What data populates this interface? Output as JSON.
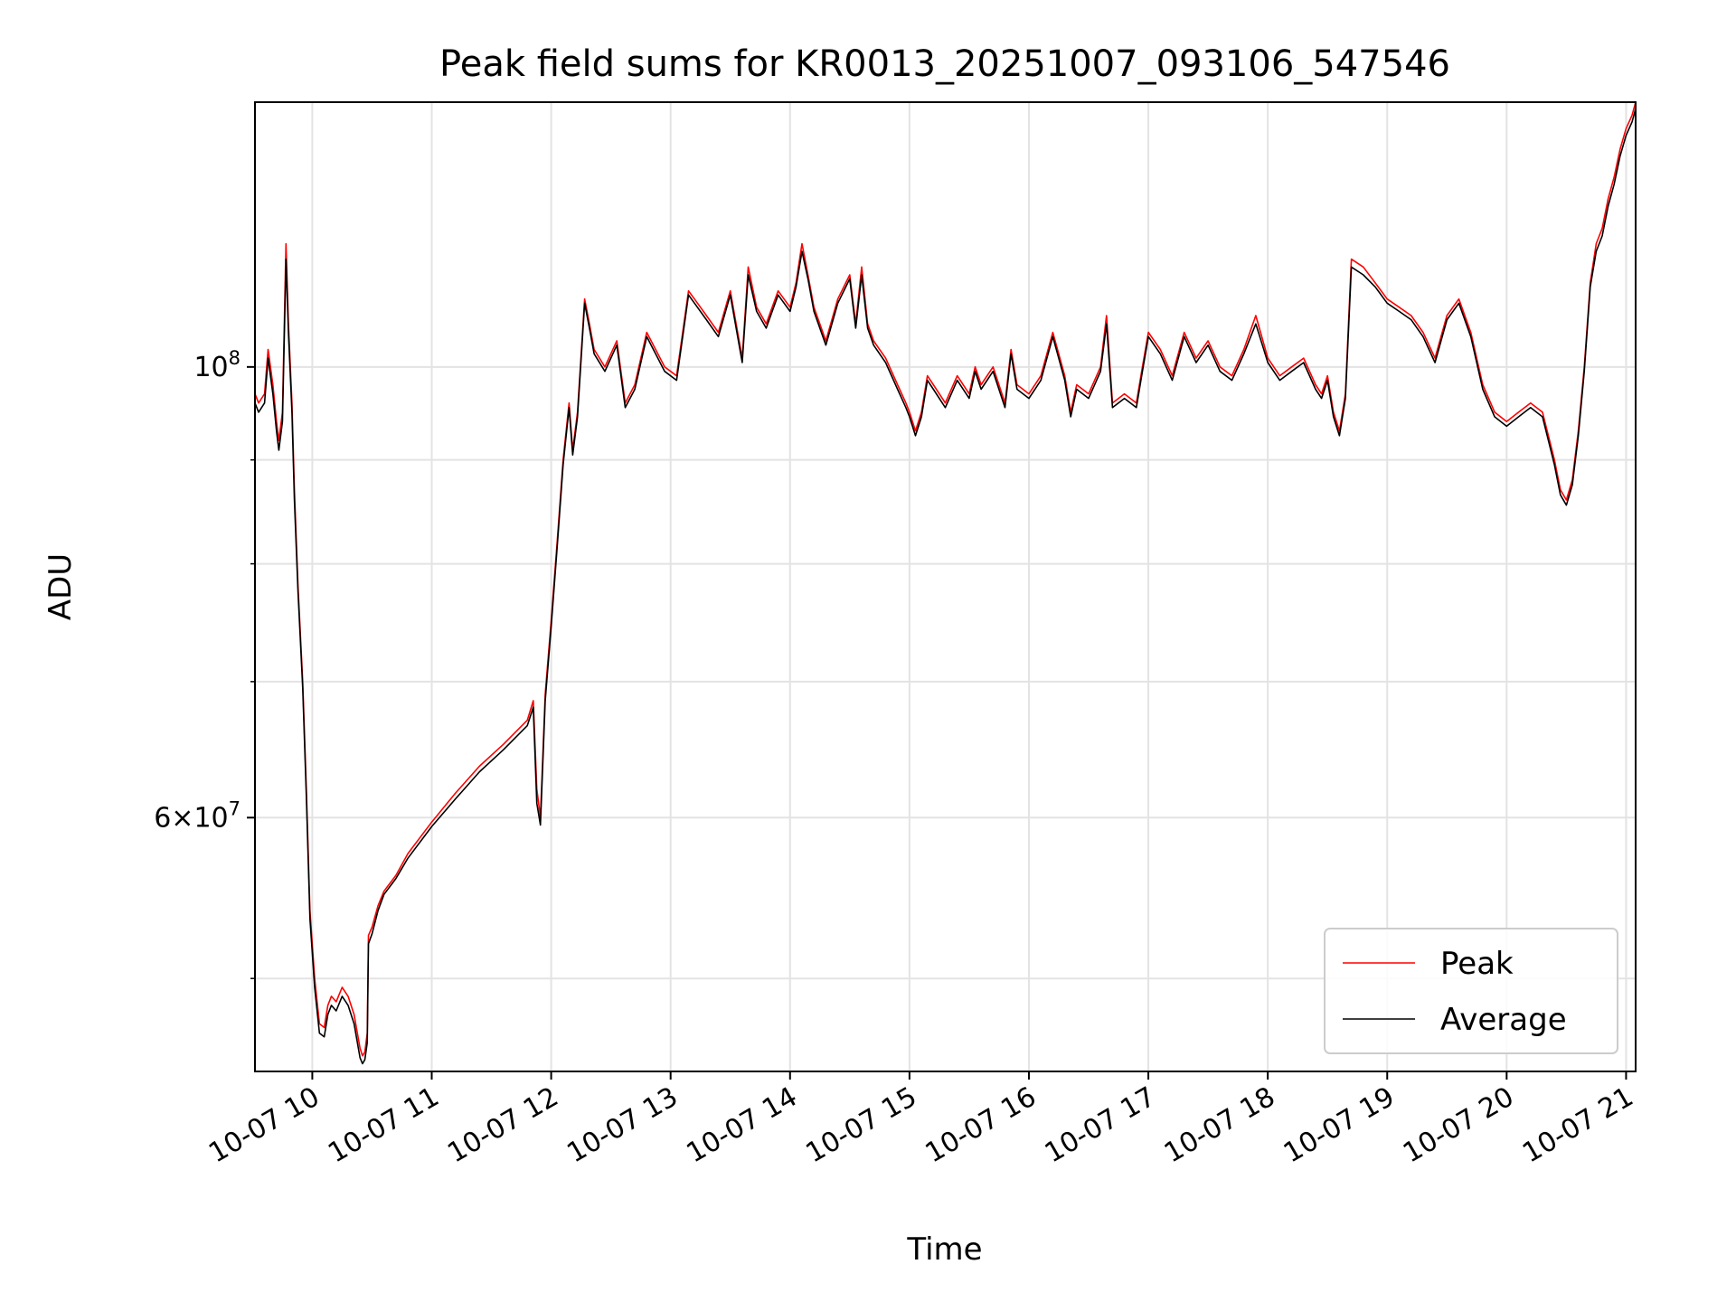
{
  "chart_data": {
    "type": "line",
    "title": "Peak field sums for KR0013_20251007_093106_547546",
    "xlabel": "Time",
    "ylabel": "ADU",
    "yscale": "log",
    "xlim": [
      9.52,
      21.08
    ],
    "ylim": [
      45000000,
      135000000
    ],
    "grid": true,
    "legend_position": "lower right",
    "x_ticks": [
      {
        "value": 10,
        "label": "10-07 10"
      },
      {
        "value": 11,
        "label": "10-07 11"
      },
      {
        "value": 12,
        "label": "10-07 12"
      },
      {
        "value": 13,
        "label": "10-07 13"
      },
      {
        "value": 14,
        "label": "10-07 14"
      },
      {
        "value": 15,
        "label": "10-07 15"
      },
      {
        "value": 16,
        "label": "10-07 16"
      },
      {
        "value": 17,
        "label": "10-07 17"
      },
      {
        "value": 18,
        "label": "10-07 18"
      },
      {
        "value": 19,
        "label": "10-07 19"
      },
      {
        "value": 20,
        "label": "10-07 20"
      },
      {
        "value": 21,
        "label": "10-07 21"
      }
    ],
    "y_major_ticks": [
      {
        "value": 60000000,
        "mantissa": "6",
        "exp": "7"
      },
      {
        "value": 100000000,
        "mantissa": "",
        "exp": "8"
      }
    ],
    "y_minor_ticks": [
      50000000,
      70000000,
      80000000,
      90000000
    ],
    "series": [
      {
        "name": "Peak",
        "color": "#ff0000",
        "x": [
          9.52,
          9.55,
          9.6,
          9.63,
          9.67,
          9.7,
          9.72,
          9.75,
          9.78,
          9.8,
          9.83,
          9.85,
          9.88,
          9.92,
          9.95,
          9.98,
          10.02,
          10.06,
          10.1,
          10.13,
          10.16,
          10.2,
          10.25,
          10.3,
          10.35,
          10.4,
          10.42,
          10.44,
          10.46,
          10.47,
          10.5,
          10.55,
          10.6,
          10.7,
          10.8,
          11.0,
          11.2,
          11.4,
          11.6,
          11.8,
          11.85,
          11.88,
          11.91,
          11.95,
          12.0,
          12.05,
          12.1,
          12.15,
          12.18,
          12.22,
          12.28,
          12.32,
          12.36,
          12.45,
          12.55,
          12.62,
          12.7,
          12.8,
          12.95,
          13.05,
          13.15,
          13.2,
          13.3,
          13.4,
          13.5,
          13.6,
          13.65,
          13.72,
          13.8,
          13.9,
          14.0,
          14.05,
          14.1,
          14.15,
          14.2,
          14.3,
          14.4,
          14.5,
          14.55,
          14.6,
          14.65,
          14.7,
          14.8,
          14.9,
          14.97,
          15.0,
          15.05,
          15.1,
          15.15,
          15.2,
          15.3,
          15.4,
          15.5,
          15.55,
          15.6,
          15.7,
          15.8,
          15.85,
          15.9,
          16.0,
          16.1,
          16.2,
          16.3,
          16.35,
          16.4,
          16.5,
          16.6,
          16.65,
          16.7,
          16.8,
          16.9,
          16.95,
          17.0,
          17.1,
          17.2,
          17.3,
          17.4,
          17.5,
          17.6,
          17.7,
          17.8,
          17.9,
          18.0,
          18.1,
          18.2,
          18.3,
          18.4,
          18.45,
          18.5,
          18.55,
          18.6,
          18.65,
          18.7,
          18.8,
          18.9,
          19.0,
          19.1,
          19.2,
          19.3,
          19.4,
          19.5,
          19.6,
          19.7,
          19.8,
          19.9,
          20.0,
          20.1,
          20.2,
          20.3,
          20.4,
          20.45,
          20.5,
          20.55,
          20.6,
          20.65,
          20.7,
          20.75,
          20.8,
          20.85,
          20.9,
          20.95,
          21.0,
          21.05,
          21.08
        ],
        "y": [
          97000000,
          96000000,
          97000000,
          102000000,
          98000000,
          94000000,
          92000000,
          95000000,
          115000000,
          105000000,
          96000000,
          87000000,
          78000000,
          70000000,
          62000000,
          54000000,
          50000000,
          47500000,
          47300000,
          48500000,
          49000000,
          48700000,
          49500000,
          49000000,
          48000000,
          46200000,
          45800000,
          46000000,
          47000000,
          52500000,
          53000000,
          54300000,
          55200000,
          56200000,
          57600000,
          59700000,
          61700000,
          63600000,
          65200000,
          67000000,
          68500000,
          62000000,
          60000000,
          69000000,
          75000000,
          82000000,
          90000000,
          96000000,
          91000000,
          95000000,
          108000000,
          105000000,
          102000000,
          100000000,
          103000000,
          96000000,
          98000000,
          104000000,
          100000000,
          99000000,
          109000000,
          108000000,
          106000000,
          104000000,
          109000000,
          101000000,
          112000000,
          107000000,
          105000000,
          109000000,
          107000000,
          110000000,
          115000000,
          111000000,
          107000000,
          103000000,
          108000000,
          111000000,
          105000000,
          112000000,
          105000000,
          103000000,
          101000000,
          98000000,
          96000000,
          95000000,
          93000000,
          95000000,
          99000000,
          98000000,
          96000000,
          99000000,
          97000000,
          100000000,
          98000000,
          100000000,
          96000000,
          102000000,
          98000000,
          97000000,
          99000000,
          104000000,
          99000000,
          95000000,
          98000000,
          97000000,
          100000000,
          106000000,
          96000000,
          97000000,
          96000000,
          100000000,
          104000000,
          102000000,
          99000000,
          104000000,
          101000000,
          103000000,
          100000000,
          99000000,
          102000000,
          106000000,
          101000000,
          99000000,
          100000000,
          101000000,
          98000000,
          97000000,
          99000000,
          95000000,
          93000000,
          97000000,
          113000000,
          112000000,
          110000000,
          108000000,
          107000000,
          106000000,
          104000000,
          101000000,
          106000000,
          108000000,
          104000000,
          98000000,
          95000000,
          94000000,
          95000000,
          96000000,
          95000000,
          90000000,
          87000000,
          86000000,
          88000000,
          93000000,
          100000000,
          110000000,
          115000000,
          117000000,
          121000000,
          124000000,
          128000000,
          131000000,
          133000000,
          135000000
        ]
      },
      {
        "name": "Average",
        "color": "#000000",
        "x": [
          9.52,
          9.55,
          9.6,
          9.63,
          9.67,
          9.7,
          9.72,
          9.75,
          9.78,
          9.8,
          9.83,
          9.85,
          9.88,
          9.92,
          9.95,
          9.98,
          10.02,
          10.06,
          10.1,
          10.13,
          10.16,
          10.2,
          10.25,
          10.3,
          10.35,
          10.4,
          10.42,
          10.44,
          10.46,
          10.47,
          10.5,
          10.55,
          10.6,
          10.7,
          10.8,
          11.0,
          11.2,
          11.4,
          11.6,
          11.8,
          11.85,
          11.88,
          11.91,
          11.95,
          12.0,
          12.05,
          12.1,
          12.15,
          12.18,
          12.22,
          12.28,
          12.32,
          12.36,
          12.45,
          12.55,
          12.62,
          12.7,
          12.8,
          12.95,
          13.05,
          13.15,
          13.2,
          13.3,
          13.4,
          13.5,
          13.6,
          13.65,
          13.72,
          13.8,
          13.9,
          14.0,
          14.05,
          14.1,
          14.15,
          14.2,
          14.3,
          14.4,
          14.5,
          14.55,
          14.6,
          14.65,
          14.7,
          14.8,
          14.9,
          14.97,
          15.0,
          15.05,
          15.1,
          15.15,
          15.2,
          15.3,
          15.4,
          15.5,
          15.55,
          15.6,
          15.7,
          15.8,
          15.85,
          15.9,
          16.0,
          16.1,
          16.2,
          16.3,
          16.35,
          16.4,
          16.5,
          16.6,
          16.65,
          16.7,
          16.8,
          16.9,
          16.95,
          17.0,
          17.1,
          17.2,
          17.3,
          17.4,
          17.5,
          17.6,
          17.7,
          17.8,
          17.9,
          18.0,
          18.1,
          18.2,
          18.3,
          18.4,
          18.45,
          18.5,
          18.55,
          18.6,
          18.65,
          18.7,
          18.8,
          18.9,
          19.0,
          19.1,
          19.2,
          19.3,
          19.4,
          19.5,
          19.6,
          19.7,
          19.8,
          19.9,
          20.0,
          20.1,
          20.2,
          20.3,
          20.4,
          20.45,
          20.5,
          20.55,
          20.6,
          20.65,
          20.7,
          20.75,
          20.8,
          20.85,
          20.9,
          20.95,
          21.0,
          21.05,
          21.08
        ],
        "y": [
          96000000,
          95000000,
          96000000,
          101000000,
          97000000,
          93000000,
          91000000,
          94000000,
          113000000,
          104000000,
          95000000,
          86000000,
          77500000,
          69500000,
          61500000,
          53500000,
          49500000,
          47000000,
          46800000,
          48000000,
          48500000,
          48200000,
          49000000,
          48500000,
          47500000,
          45700000,
          45400000,
          45600000,
          46500000,
          52000000,
          52600000,
          54000000,
          55000000,
          56000000,
          57300000,
          59400000,
          61300000,
          63200000,
          64800000,
          66600000,
          68000000,
          61000000,
          59500000,
          68500000,
          74500000,
          81500000,
          89500000,
          95500000,
          90500000,
          94500000,
          107500000,
          104500000,
          101500000,
          99500000,
          102500000,
          95500000,
          97500000,
          103500000,
          99500000,
          98500000,
          108500000,
          107500000,
          105500000,
          103500000,
          108500000,
          100500000,
          111000000,
          106500000,
          104500000,
          108500000,
          106500000,
          109500000,
          114000000,
          110500000,
          106500000,
          102500000,
          107500000,
          110500000,
          104500000,
          111000000,
          104500000,
          102500000,
          100500000,
          97500000,
          95500000,
          94500000,
          92500000,
          94500000,
          98500000,
          97500000,
          95500000,
          98500000,
          96500000,
          99500000,
          97500000,
          99500000,
          95500000,
          101500000,
          97500000,
          96500000,
          98500000,
          103500000,
          98500000,
          94500000,
          97500000,
          96500000,
          99500000,
          105000000,
          95500000,
          96500000,
          95500000,
          99500000,
          103500000,
          101500000,
          98500000,
          103500000,
          100500000,
          102500000,
          99500000,
          98500000,
          101500000,
          105000000,
          100500000,
          98500000,
          99500000,
          100500000,
          97500000,
          96500000,
          98500000,
          94500000,
          92500000,
          96500000,
          112000000,
          111000000,
          109500000,
          107500000,
          106500000,
          105500000,
          103500000,
          100500000,
          105500000,
          107500000,
          103500000,
          97500000,
          94500000,
          93500000,
          94500000,
          95500000,
          94500000,
          89500000,
          86500000,
          85500000,
          87500000,
          92500000,
          99500000,
          109500000,
          114000000,
          116000000,
          120000000,
          123000000,
          127000000,
          130000000,
          132000000,
          134000000
        ]
      }
    ]
  }
}
